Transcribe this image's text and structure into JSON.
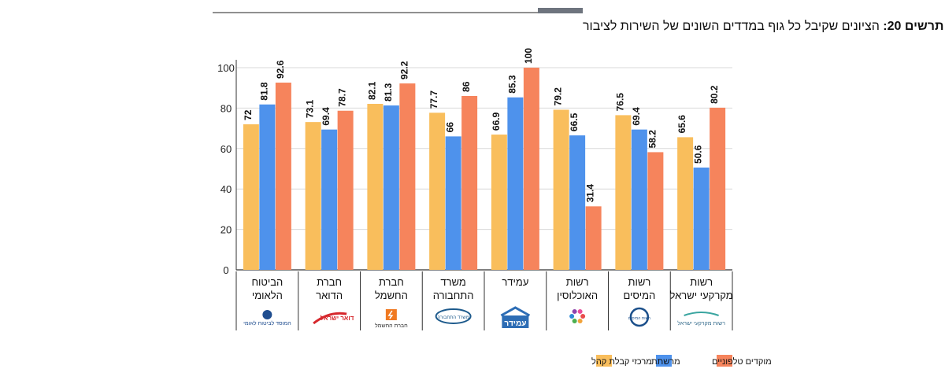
{
  "chart_data": {
    "type": "bar",
    "title": "תרשים 20: הציונים שקיבל כל גוף במדדים השונים של השירות לציבור",
    "title_prefix": "תרשים 20:",
    "title_text": "הציונים שקיבל כל גוף במדדים השונים של השירות לציבור",
    "xlabel": "",
    "ylabel": "",
    "ylim": [
      0,
      100
    ],
    "yticks": [
      0,
      20,
      40,
      60,
      80,
      100
    ],
    "grid": true,
    "legend_position": "bottom",
    "categories": [
      {
        "line1": "הביטוח",
        "line2": "הלאומי",
        "logo_text": "המוסד לביטוח לאומי",
        "logo_icon": "national-insurance-logo"
      },
      {
        "line1": "חברת",
        "line2": "הדואר",
        "logo_text": "דואר ישראל",
        "logo_icon": "israel-post-logo"
      },
      {
        "line1": "חברת",
        "line2": "החשמל",
        "logo_text": "חברת החשמל",
        "logo_icon": "electric-company-logo"
      },
      {
        "line1": "משרד",
        "line2": "התחבורה",
        "logo_text": "משרד התחבורה",
        "logo_icon": "transport-ministry-logo"
      },
      {
        "line1": "עמידר",
        "line2": "",
        "logo_text": "עמידר",
        "logo_icon": "amidar-logo"
      },
      {
        "line1": "רשות",
        "line2": "האוכלוסין",
        "logo_text": "",
        "logo_icon": "population-authority-logo"
      },
      {
        "line1": "רשות",
        "line2": "המיסים",
        "logo_text": "רשות המיסים",
        "logo_icon": "tax-authority-logo"
      },
      {
        "line1": "רשות",
        "line2": "מקרקעי ישראל",
        "logo_text": "רשות מקרקעי ישראל",
        "logo_icon": "land-authority-logo"
      }
    ],
    "series": [
      {
        "name": "מרכזי קבלת קהל",
        "color": "#F9BE5C",
        "values": [
          72,
          73.1,
          82.1,
          77.7,
          66.9,
          79.2,
          76.5,
          65.6
        ]
      },
      {
        "name": "מרשתת",
        "color": "#4E92EC",
        "values": [
          81.8,
          69.4,
          81.3,
          66,
          85.3,
          66.5,
          69.4,
          50.6
        ]
      },
      {
        "name": "מוקדים טלפוניים",
        "color": "#F6845C",
        "values": [
          92.6,
          78.7,
          92.2,
          86,
          100,
          31.4,
          58.2,
          80.2
        ]
      }
    ]
  }
}
